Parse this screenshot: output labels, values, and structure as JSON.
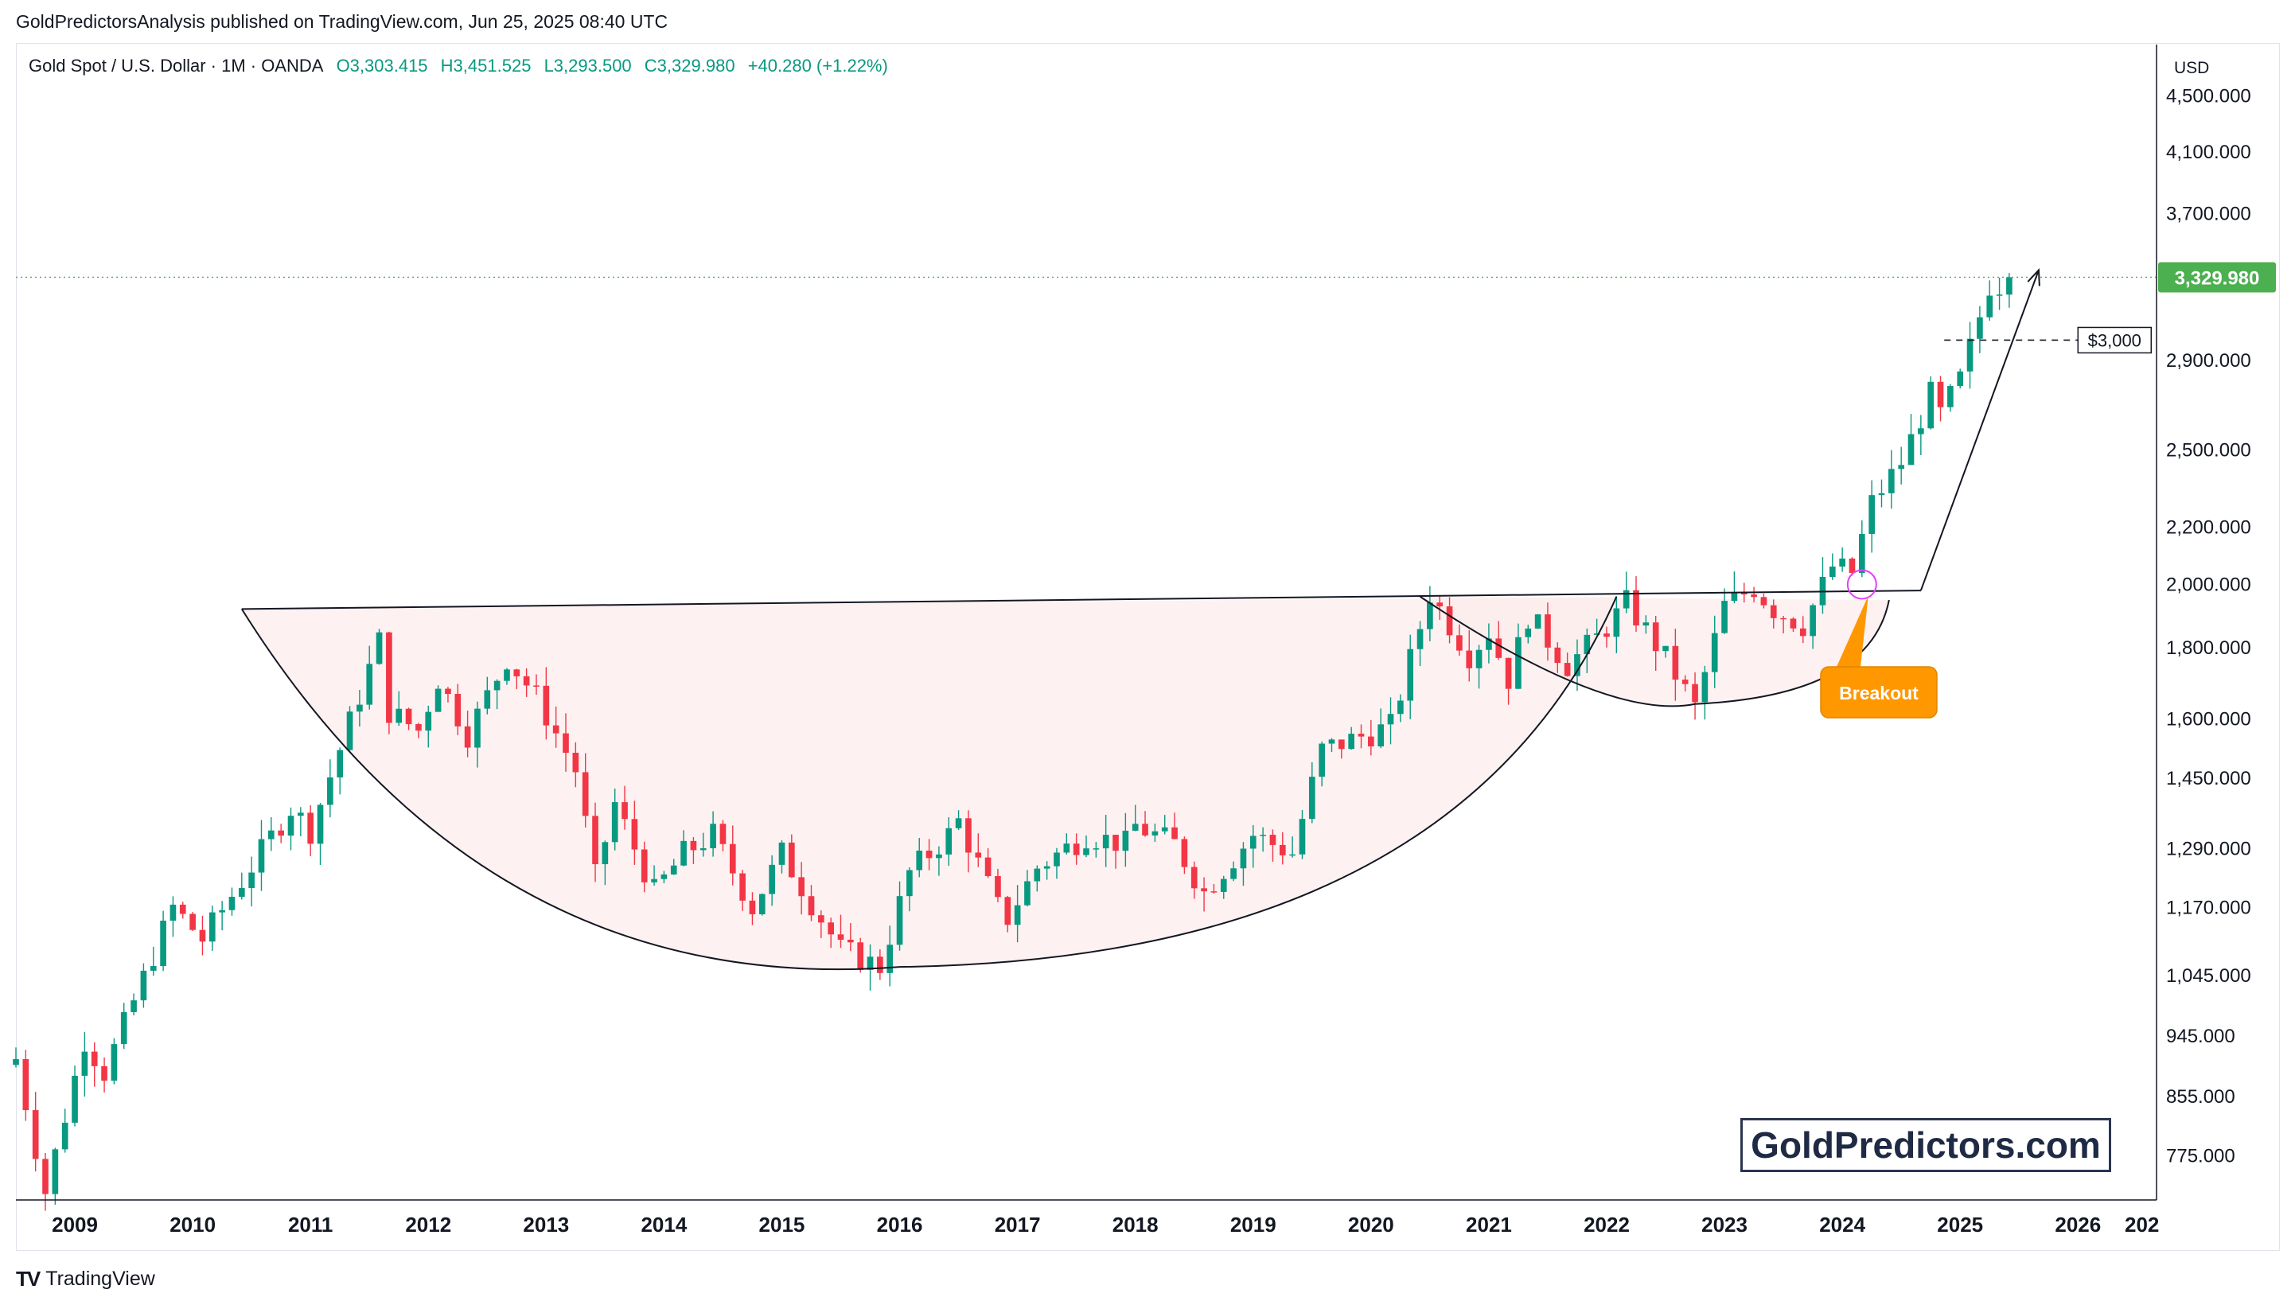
{
  "header": {
    "publisher_line": "GoldPredictorsAnalysis published on TradingView.com, Jun 25, 2025 08:40 UTC"
  },
  "symbol": {
    "name": "Gold Spot / U.S. Dollar · 1M · OANDA",
    "open": "O3,303.415",
    "high": "H3,451.525",
    "low": "L3,293.500",
    "close": "C3,329.980",
    "change": "+40.280 (+1.22%)"
  },
  "price_axis": {
    "currency": "USD",
    "last_price_label": "3,329.980"
  },
  "annotations": {
    "breakout": "Breakout",
    "level_3000": "$3,000"
  },
  "watermark": "GoldPredictors.com",
  "footer": {
    "brand": "TradingView"
  },
  "colors": {
    "up": "#089981",
    "down": "#f23645",
    "pattern_fill": "#fdeeee",
    "breakout": "#ff9800",
    "last_price": "#4caf50"
  },
  "chart_data": {
    "type": "candlestick",
    "interval": "1M",
    "y_scale": "log",
    "ylim": [
      720,
      4900
    ],
    "xlim": [
      "2008-07",
      "2026-09"
    ],
    "y_ticks": [
      4500,
      4100,
      3700,
      2900,
      2500,
      2200,
      2000,
      1800,
      1600,
      1450,
      1290,
      1170,
      1045,
      945,
      855,
      775
    ],
    "y_tick_labels": [
      "4,500.000",
      "4,100.000",
      "3,700.000",
      "2,900.000",
      "2,500.000",
      "2,200.000",
      "2,000.000",
      "1,800.000",
      "1,600.000",
      "1,450.000",
      "1,290.000",
      "1,170.000",
      "1,045.000",
      "945.000",
      "855.000",
      "775.000"
    ],
    "x_ticks": [
      "2009",
      "2010",
      "2011",
      "2012",
      "2013",
      "2014",
      "2015",
      "2016",
      "2017",
      "2018",
      "2019",
      "2020",
      "2021",
      "2022",
      "2023",
      "2024",
      "2025",
      "2026",
      "202"
    ],
    "last_price": 3329.98,
    "key_levels": [
      3000
    ],
    "waypoints": [
      [
        "2008-07",
        910
      ],
      [
        "2008-10",
        730
      ],
      [
        "2009-02",
        940
      ],
      [
        "2009-04",
        890
      ],
      [
        "2009-11",
        1170
      ],
      [
        "2010-02",
        1110
      ],
      [
        "2010-11",
        1380
      ],
      [
        "2011-01",
        1330
      ],
      [
        "2011-08",
        1820
      ],
      [
        "2011-09",
        1620
      ],
      [
        "2011-12",
        1570
      ],
      [
        "2012-02",
        1710
      ],
      [
        "2012-05",
        1560
      ],
      [
        "2012-09",
        1770
      ],
      [
        "2012-12",
        1660
      ],
      [
        "2013-04",
        1470
      ],
      [
        "2013-06",
        1230
      ],
      [
        "2013-08",
        1390
      ],
      [
        "2013-12",
        1200
      ],
      [
        "2014-03",
        1280
      ],
      [
        "2014-06",
        1320
      ],
      [
        "2014-10",
        1170
      ],
      [
        "2015-01",
        1280
      ],
      [
        "2015-04",
        1180
      ],
      [
        "2015-07",
        1090
      ],
      [
        "2015-11",
        1060
      ],
      [
        "2016-02",
        1240
      ],
      [
        "2016-06",
        1320
      ],
      [
        "2016-07",
        1350
      ],
      [
        "2016-11",
        1170
      ],
      [
        "2016-12",
        1150
      ],
      [
        "2017-03",
        1250
      ],
      [
        "2017-08",
        1320
      ],
      [
        "2017-12",
        1300
      ],
      [
        "2018-01",
        1340
      ],
      [
        "2018-05",
        1300
      ],
      [
        "2018-08",
        1200
      ],
      [
        "2019-01",
        1320
      ],
      [
        "2019-05",
        1280
      ],
      [
        "2019-08",
        1520
      ],
      [
        "2020-03",
        1580
      ],
      [
        "2020-07",
        1970
      ],
      [
        "2020-11",
        1780
      ],
      [
        "2021-01",
        1850
      ],
      [
        "2021-03",
        1710
      ],
      [
        "2021-05",
        1900
      ],
      [
        "2021-09",
        1750
      ],
      [
        "2021-12",
        1830
      ],
      [
        "2022-02",
        1900
      ],
      [
        "2022-03",
        1940
      ],
      [
        "2022-07",
        1770
      ],
      [
        "2022-10",
        1630
      ],
      [
        "2023-01",
        1930
      ],
      [
        "2023-04",
        1990
      ],
      [
        "2023-06",
        1920
      ],
      [
        "2023-09",
        1870
      ],
      [
        "2023-12",
        2060
      ],
      [
        "2024-02",
        2040
      ],
      [
        "2024-04",
        2290
      ],
      [
        "2024-07",
        2450
      ],
      [
        "2024-10",
        2740
      ],
      [
        "2024-11",
        2650
      ],
      [
        "2025-01",
        2810
      ],
      [
        "2025-03",
        3120
      ],
      [
        "2025-04",
        3290
      ],
      [
        "2025-05",
        3290
      ],
      [
        "2025-06",
        3330
      ]
    ],
    "pattern": {
      "name": "cup and handle",
      "rim_level": [
        [
          "2010-06",
          1920
        ],
        [
          "2024-09",
          1980
        ]
      ],
      "cup_bottom": [
        "2016-01",
        1060
      ],
      "handle_bottom": [
        "2022-10",
        1640
      ],
      "breakout_point": [
        "2024-03",
        2000
      ],
      "target_arrow": [
        [
          "2024-09",
          1980
        ],
        [
          "2025-09",
          3370
        ]
      ]
    }
  }
}
